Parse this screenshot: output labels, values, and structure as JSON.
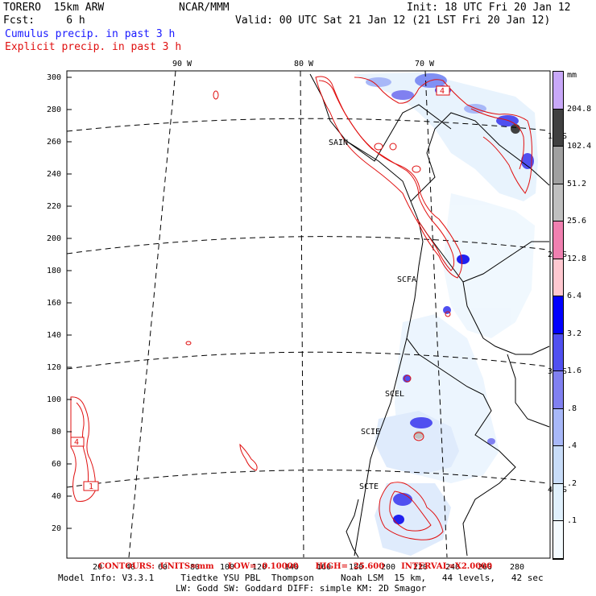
{
  "header": {
    "model": "TORERO  15km ARW",
    "org": "NCAR/MMM",
    "init": "Init: 18 UTC Fri 20 Jan 12",
    "fcst": "Fcst:     6 h",
    "valid": "Valid: 00 UTC Sat 21 Jan 12 (21 LST Fri 20 Jan 12)",
    "cumulus": "Cumulus precip. in past 3 h",
    "explicit": "Explicit precip. in past 3 h"
  },
  "lon_labels": [
    "90 W",
    "80 W",
    "70 W"
  ],
  "lat_labels": [
    "10 S",
    "20 S",
    "30 S",
    "40 S"
  ],
  "y_ticks": [
    "300",
    "280",
    "260",
    "240",
    "220",
    "200",
    "180",
    "160",
    "140",
    "120",
    "100",
    "80",
    "60",
    "40",
    "20"
  ],
  "x_ticks": [
    "20",
    "40",
    "60",
    "80",
    "100",
    "120",
    "140",
    "160",
    "180",
    "200",
    "220",
    "240",
    "260",
    "280"
  ],
  "stations": [
    "SAIN",
    "SCFA",
    "SCEL",
    "SCIE",
    "SCTE"
  ],
  "contour_labels": [
    "4",
    "4",
    "1"
  ],
  "legend": {
    "unit": "mm",
    "values": [
      "204.8",
      "102.4",
      "51.2",
      "25.6",
      "12.8",
      "6.4",
      "3.2",
      "1.6",
      ".8",
      ".4",
      ".2",
      ".1"
    ],
    "colors": [
      "#c8a8f8",
      "#404040",
      "#a0a0a0",
      "#c0c0c0",
      "#f080b0",
      "#ffc8d0",
      "#0000ff",
      "#5050f0",
      "#8080f0",
      "#a8b8f8",
      "#c8dcf8",
      "#e0f0fc",
      "#f4fbff"
    ]
  },
  "footer": {
    "overlay": "CONTOURS:  UNITS=mm     LOW=  0.10000      HIGH=  25.600      INTERVAL=X2.0000",
    "line1": "Model Info: V3.3.1     Tiedtke YSU PBL  Thompson     Noah LSM  15 km,   44 levels,   42 sec",
    "line2": "LW: Godd SW: Goddard DIFF: simple KM: 2D Smagor"
  }
}
